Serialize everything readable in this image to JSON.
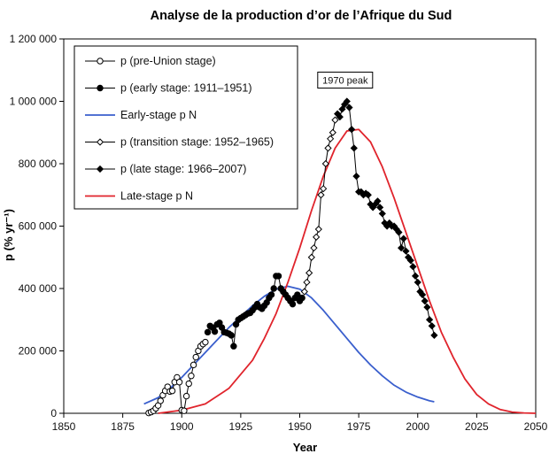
{
  "chart_data": {
    "type": "line",
    "title": "Analyse de la production d’or de l’Afrique du Sud",
    "xlabel": "Year",
    "ylabel": "p (% yr⁻¹)",
    "xlim": [
      1850,
      2050
    ],
    "ylim": [
      0,
      1200000
    ],
    "x_ticks": [
      1850,
      1875,
      1900,
      1925,
      1950,
      1975,
      2000,
      2025,
      2050
    ],
    "x_tick_labels": [
      "1850",
      "1875",
      "1900",
      "1925",
      "1950",
      "1975",
      "2000",
      "2025",
      "2050"
    ],
    "y_ticks": [
      0,
      200000,
      400000,
      600000,
      800000,
      1000000,
      1200000
    ],
    "y_tick_labels": [
      "0",
      "200 000",
      "400 000",
      "600 000",
      "800 000",
      "1 000 000",
      "1 200 000"
    ],
    "grid": false,
    "legend_position": "top-left",
    "annotation": {
      "text": "1970 peak",
      "x": 1970,
      "y": 1000000
    },
    "series": [
      {
        "name": "p (pre-Union stage)",
        "style": "line-open-circle",
        "color": "#000000",
        "x": [
          1886,
          1887,
          1888,
          1889,
          1890,
          1891,
          1892,
          1893,
          1894,
          1895,
          1896,
          1897,
          1898,
          1899,
          1900,
          1901,
          1902,
          1903,
          1904,
          1905,
          1906,
          1907,
          1908,
          1909,
          1910
        ],
        "y": [
          1000,
          4000,
          8000,
          16000,
          25000,
          40000,
          58000,
          72000,
          85000,
          70000,
          72000,
          100000,
          115000,
          100000,
          10000,
          8000,
          55000,
          95000,
          120000,
          155000,
          180000,
          200000,
          215000,
          222000,
          228000
        ]
      },
      {
        "name": "p (early stage: 1911–1951)",
        "style": "line-filled-circle",
        "color": "#000000",
        "x": [
          1911,
          1912,
          1913,
          1914,
          1915,
          1916,
          1917,
          1918,
          1919,
          1920,
          1921,
          1922,
          1923,
          1924,
          1925,
          1926,
          1927,
          1928,
          1929,
          1930,
          1931,
          1932,
          1933,
          1934,
          1935,
          1936,
          1937,
          1938,
          1939,
          1940,
          1941,
          1942,
          1943,
          1944,
          1945,
          1946,
          1947,
          1948,
          1949,
          1950,
          1951
        ],
        "y": [
          260000,
          280000,
          275000,
          262000,
          285000,
          290000,
          275000,
          260000,
          258000,
          255000,
          250000,
          215000,
          285000,
          300000,
          305000,
          310000,
          315000,
          320000,
          322000,
          330000,
          340000,
          350000,
          340000,
          335000,
          345000,
          355000,
          370000,
          380000,
          400000,
          440000,
          440000,
          400000,
          390000,
          380000,
          370000,
          360000,
          350000,
          370000,
          380000,
          360000,
          370000
        ]
      },
      {
        "name": "Early-stage p N",
        "style": "line",
        "color": "#3a5fcd",
        "x": [
          1884,
          1890,
          1895,
          1900,
          1905,
          1910,
          1915,
          1920,
          1925,
          1930,
          1935,
          1940,
          1945,
          1950,
          1955,
          1960,
          1965,
          1970,
          1975,
          1980,
          1985,
          1990,
          1995,
          2000,
          2005,
          2007
        ],
        "y": [
          30000,
          50000,
          80000,
          115000,
          155000,
          195000,
          235000,
          275000,
          310000,
          345000,
          375000,
          398000,
          407000,
          398000,
          370000,
          330000,
          285000,
          240000,
          195000,
          155000,
          120000,
          90000,
          68000,
          52000,
          40000,
          37000
        ]
      },
      {
        "name": "p (transition stage: 1952–1965)",
        "style": "line-open-diamond",
        "color": "#000000",
        "x": [
          1952,
          1953,
          1954,
          1955,
          1956,
          1957,
          1958,
          1959,
          1960,
          1961,
          1962,
          1963,
          1964,
          1965
        ],
        "y": [
          390000,
          420000,
          450000,
          500000,
          530000,
          565000,
          590000,
          700000,
          720000,
          800000,
          850000,
          880000,
          900000,
          940000
        ]
      },
      {
        "name": "p (late stage: 1966–2007)",
        "style": "line-filled-diamond",
        "color": "#000000",
        "x": [
          1966,
          1967,
          1968,
          1969,
          1970,
          1971,
          1972,
          1973,
          1974,
          1975,
          1976,
          1977,
          1978,
          1979,
          1980,
          1981,
          1982,
          1983,
          1984,
          1985,
          1986,
          1987,
          1988,
          1989,
          1990,
          1991,
          1992,
          1993,
          1994,
          1995,
          1996,
          1997,
          1998,
          1999,
          2000,
          2001,
          2002,
          2003,
          2004,
          2005,
          2006,
          2007
        ],
        "y": [
          960000,
          950000,
          975000,
          990000,
          1000000,
          980000,
          910000,
          850000,
          760000,
          710000,
          710000,
          700000,
          705000,
          700000,
          670000,
          660000,
          670000,
          680000,
          660000,
          640000,
          610000,
          600000,
          610000,
          600000,
          600000,
          590000,
          580000,
          530000,
          560000,
          520000,
          500000,
          490000,
          470000,
          440000,
          420000,
          390000,
          380000,
          360000,
          340000,
          300000,
          280000,
          250000
        ]
      },
      {
        "name": "Late-stage p N",
        "style": "line",
        "color": "#e0242c",
        "x": [
          1890,
          1900,
          1910,
          1920,
          1930,
          1935,
          1940,
          1945,
          1950,
          1955,
          1960,
          1965,
          1970,
          1975,
          1980,
          1985,
          1990,
          1995,
          2000,
          2005,
          2010,
          2015,
          2020,
          2025,
          2030,
          2035,
          2040,
          2045,
          2050
        ],
        "y": [
          0,
          10000,
          30000,
          80000,
          170000,
          240000,
          320000,
          420000,
          530000,
          650000,
          760000,
          850000,
          905000,
          910000,
          870000,
          790000,
          690000,
          580000,
          470000,
          360000,
          260000,
          180000,
          110000,
          60000,
          30000,
          12000,
          4000,
          1000,
          0
        ]
      }
    ]
  }
}
